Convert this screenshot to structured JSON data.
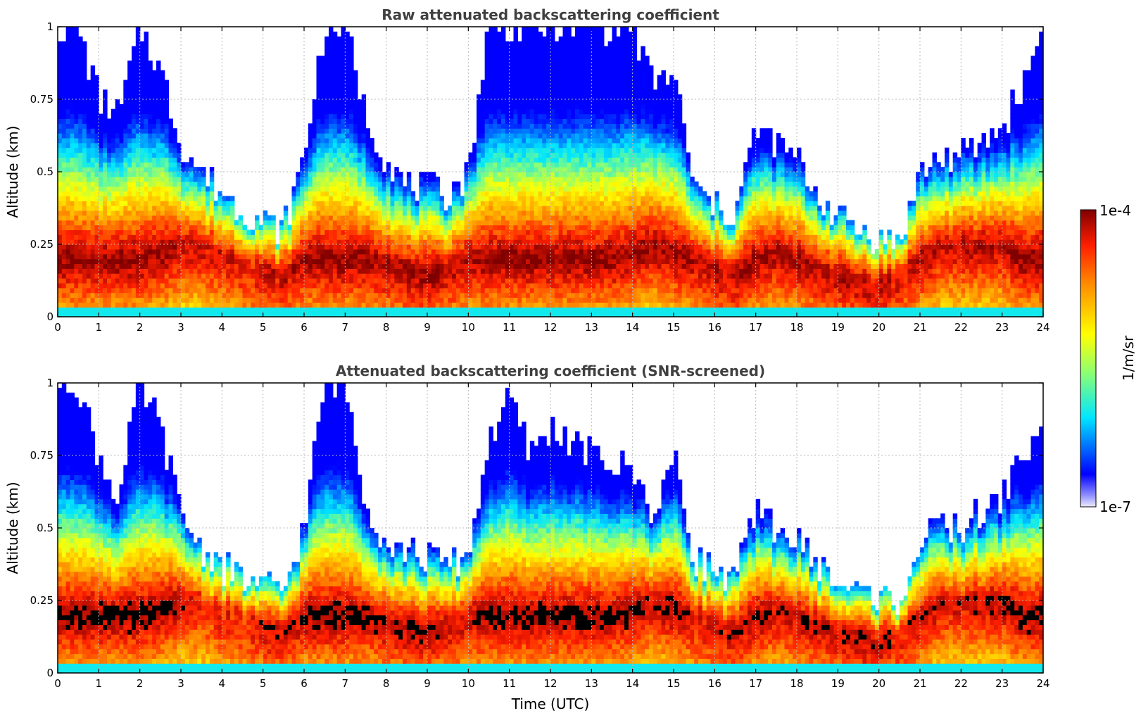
{
  "chart_data": [
    {
      "type": "heatmap",
      "title": "Raw attenuated backscattering coefficient",
      "xlabel": "",
      "ylabel": "Altitude (km)",
      "xlim": [
        0,
        24
      ],
      "ylim": [
        0,
        1
      ],
      "x_ticks": [
        0,
        1,
        2,
        3,
        4,
        5,
        6,
        7,
        8,
        9,
        10,
        11,
        12,
        13,
        14,
        15,
        16,
        17,
        18,
        19,
        20,
        21,
        22,
        23,
        24
      ],
      "y_ticks": [
        "0",
        "0.25",
        "0.5",
        "0.75",
        "1"
      ],
      "grid": true,
      "profile": {
        "time_utc": [
          0,
          0.5,
          1,
          1.5,
          2,
          2.5,
          3,
          3.5,
          4,
          4.5,
          5,
          5.5,
          6,
          6.5,
          7,
          7.5,
          8,
          8.5,
          9,
          9.5,
          10,
          10.5,
          11,
          11.5,
          12,
          12.5,
          13,
          13.5,
          14,
          14.5,
          15,
          15.5,
          16,
          16.5,
          17,
          17.5,
          18,
          18.5,
          19,
          19.5,
          20,
          20.5,
          21,
          21.5,
          22,
          22.5,
          23,
          23.5,
          24
        ],
        "signal_top_km": [
          1,
          1,
          0.75,
          0.7,
          1,
          0.85,
          0.6,
          0.5,
          0.43,
          0.37,
          0.33,
          0.3,
          0.55,
          1,
          1,
          0.7,
          0.55,
          0.45,
          0.45,
          0.42,
          0.5,
          1,
          1,
          1,
          1,
          1,
          1,
          1,
          1,
          0.8,
          0.85,
          0.45,
          0.38,
          0.35,
          0.65,
          0.6,
          0.55,
          0.42,
          0.35,
          0.3,
          0.27,
          0.25,
          0.5,
          0.55,
          0.55,
          0.6,
          0.65,
          0.8,
          1
        ],
        "peak_layer_km": [
          0.2,
          0.2,
          0.2,
          0.2,
          0.2,
          0.22,
          0.25,
          0.25,
          0.22,
          0.2,
          0.17,
          0.15,
          0.2,
          0.2,
          0.2,
          0.2,
          0.18,
          0.16,
          0.15,
          0.17,
          0.2,
          0.2,
          0.2,
          0.2,
          0.2,
          0.2,
          0.2,
          0.2,
          0.22,
          0.25,
          0.22,
          0.2,
          0.17,
          0.15,
          0.2,
          0.22,
          0.2,
          0.17,
          0.15,
          0.13,
          0.12,
          0.15,
          0.2,
          0.25,
          0.25,
          0.25,
          0.25,
          0.2,
          0.2
        ]
      }
    },
    {
      "type": "heatmap",
      "title": "Attenuated backscattering coefficient (SNR-screened)",
      "xlabel": "Time (UTC)",
      "ylabel": "Altitude (km)",
      "xlim": [
        0,
        24
      ],
      "ylim": [
        0,
        1
      ],
      "x_ticks": [
        0,
        1,
        2,
        3,
        4,
        5,
        6,
        7,
        8,
        9,
        10,
        11,
        12,
        13,
        14,
        15,
        16,
        17,
        18,
        19,
        20,
        21,
        22,
        23,
        24
      ],
      "y_ticks": [
        "0",
        "0.25",
        "0.5",
        "0.75",
        "1"
      ],
      "grid": true,
      "profile": {
        "time_utc": [
          0,
          0.5,
          1,
          1.5,
          2,
          2.5,
          3,
          3.5,
          4,
          4.5,
          5,
          5.5,
          6,
          6.5,
          7,
          7.5,
          8,
          8.5,
          9,
          9.5,
          10,
          10.5,
          11,
          11.5,
          12,
          12.5,
          13,
          13.5,
          14,
          14.5,
          15,
          15.5,
          16,
          16.5,
          17,
          17.5,
          18,
          18.5,
          19,
          19.5,
          20,
          20.5,
          21,
          21.5,
          22,
          22.5,
          23,
          23.5,
          24
        ],
        "signal_top_km": [
          1,
          1,
          0.75,
          0.6,
          1,
          0.85,
          0.55,
          0.43,
          0.37,
          0.32,
          0.3,
          0.28,
          0.5,
          1,
          1,
          0.6,
          0.45,
          0.42,
          0.4,
          0.37,
          0.4,
          0.8,
          0.95,
          0.75,
          0.85,
          0.8,
          0.75,
          0.72,
          0.7,
          0.55,
          0.75,
          0.4,
          0.35,
          0.33,
          0.55,
          0.5,
          0.45,
          0.38,
          0.3,
          0.28,
          0.26,
          0.25,
          0.45,
          0.5,
          0.5,
          0.55,
          0.6,
          0.75,
          0.85
        ],
        "peak_layer_km": [
          0.2,
          0.2,
          0.2,
          0.2,
          0.2,
          0.22,
          0.25,
          0.25,
          0.22,
          0.2,
          0.17,
          0.15,
          0.2,
          0.2,
          0.2,
          0.2,
          0.18,
          0.16,
          0.15,
          0.17,
          0.2,
          0.2,
          0.2,
          0.2,
          0.2,
          0.2,
          0.2,
          0.2,
          0.22,
          0.25,
          0.22,
          0.2,
          0.17,
          0.15,
          0.2,
          0.22,
          0.2,
          0.17,
          0.15,
          0.13,
          0.12,
          0.15,
          0.2,
          0.25,
          0.25,
          0.25,
          0.25,
          0.2,
          0.2
        ]
      },
      "saturated_color": "#000000"
    }
  ],
  "colorbar": {
    "unit_label": "1/m/sr",
    "max_label": "1e-4",
    "min_label": "1e-7",
    "scale": "log",
    "range": [
      1e-07,
      0.0001
    ],
    "colormap": "jet"
  }
}
